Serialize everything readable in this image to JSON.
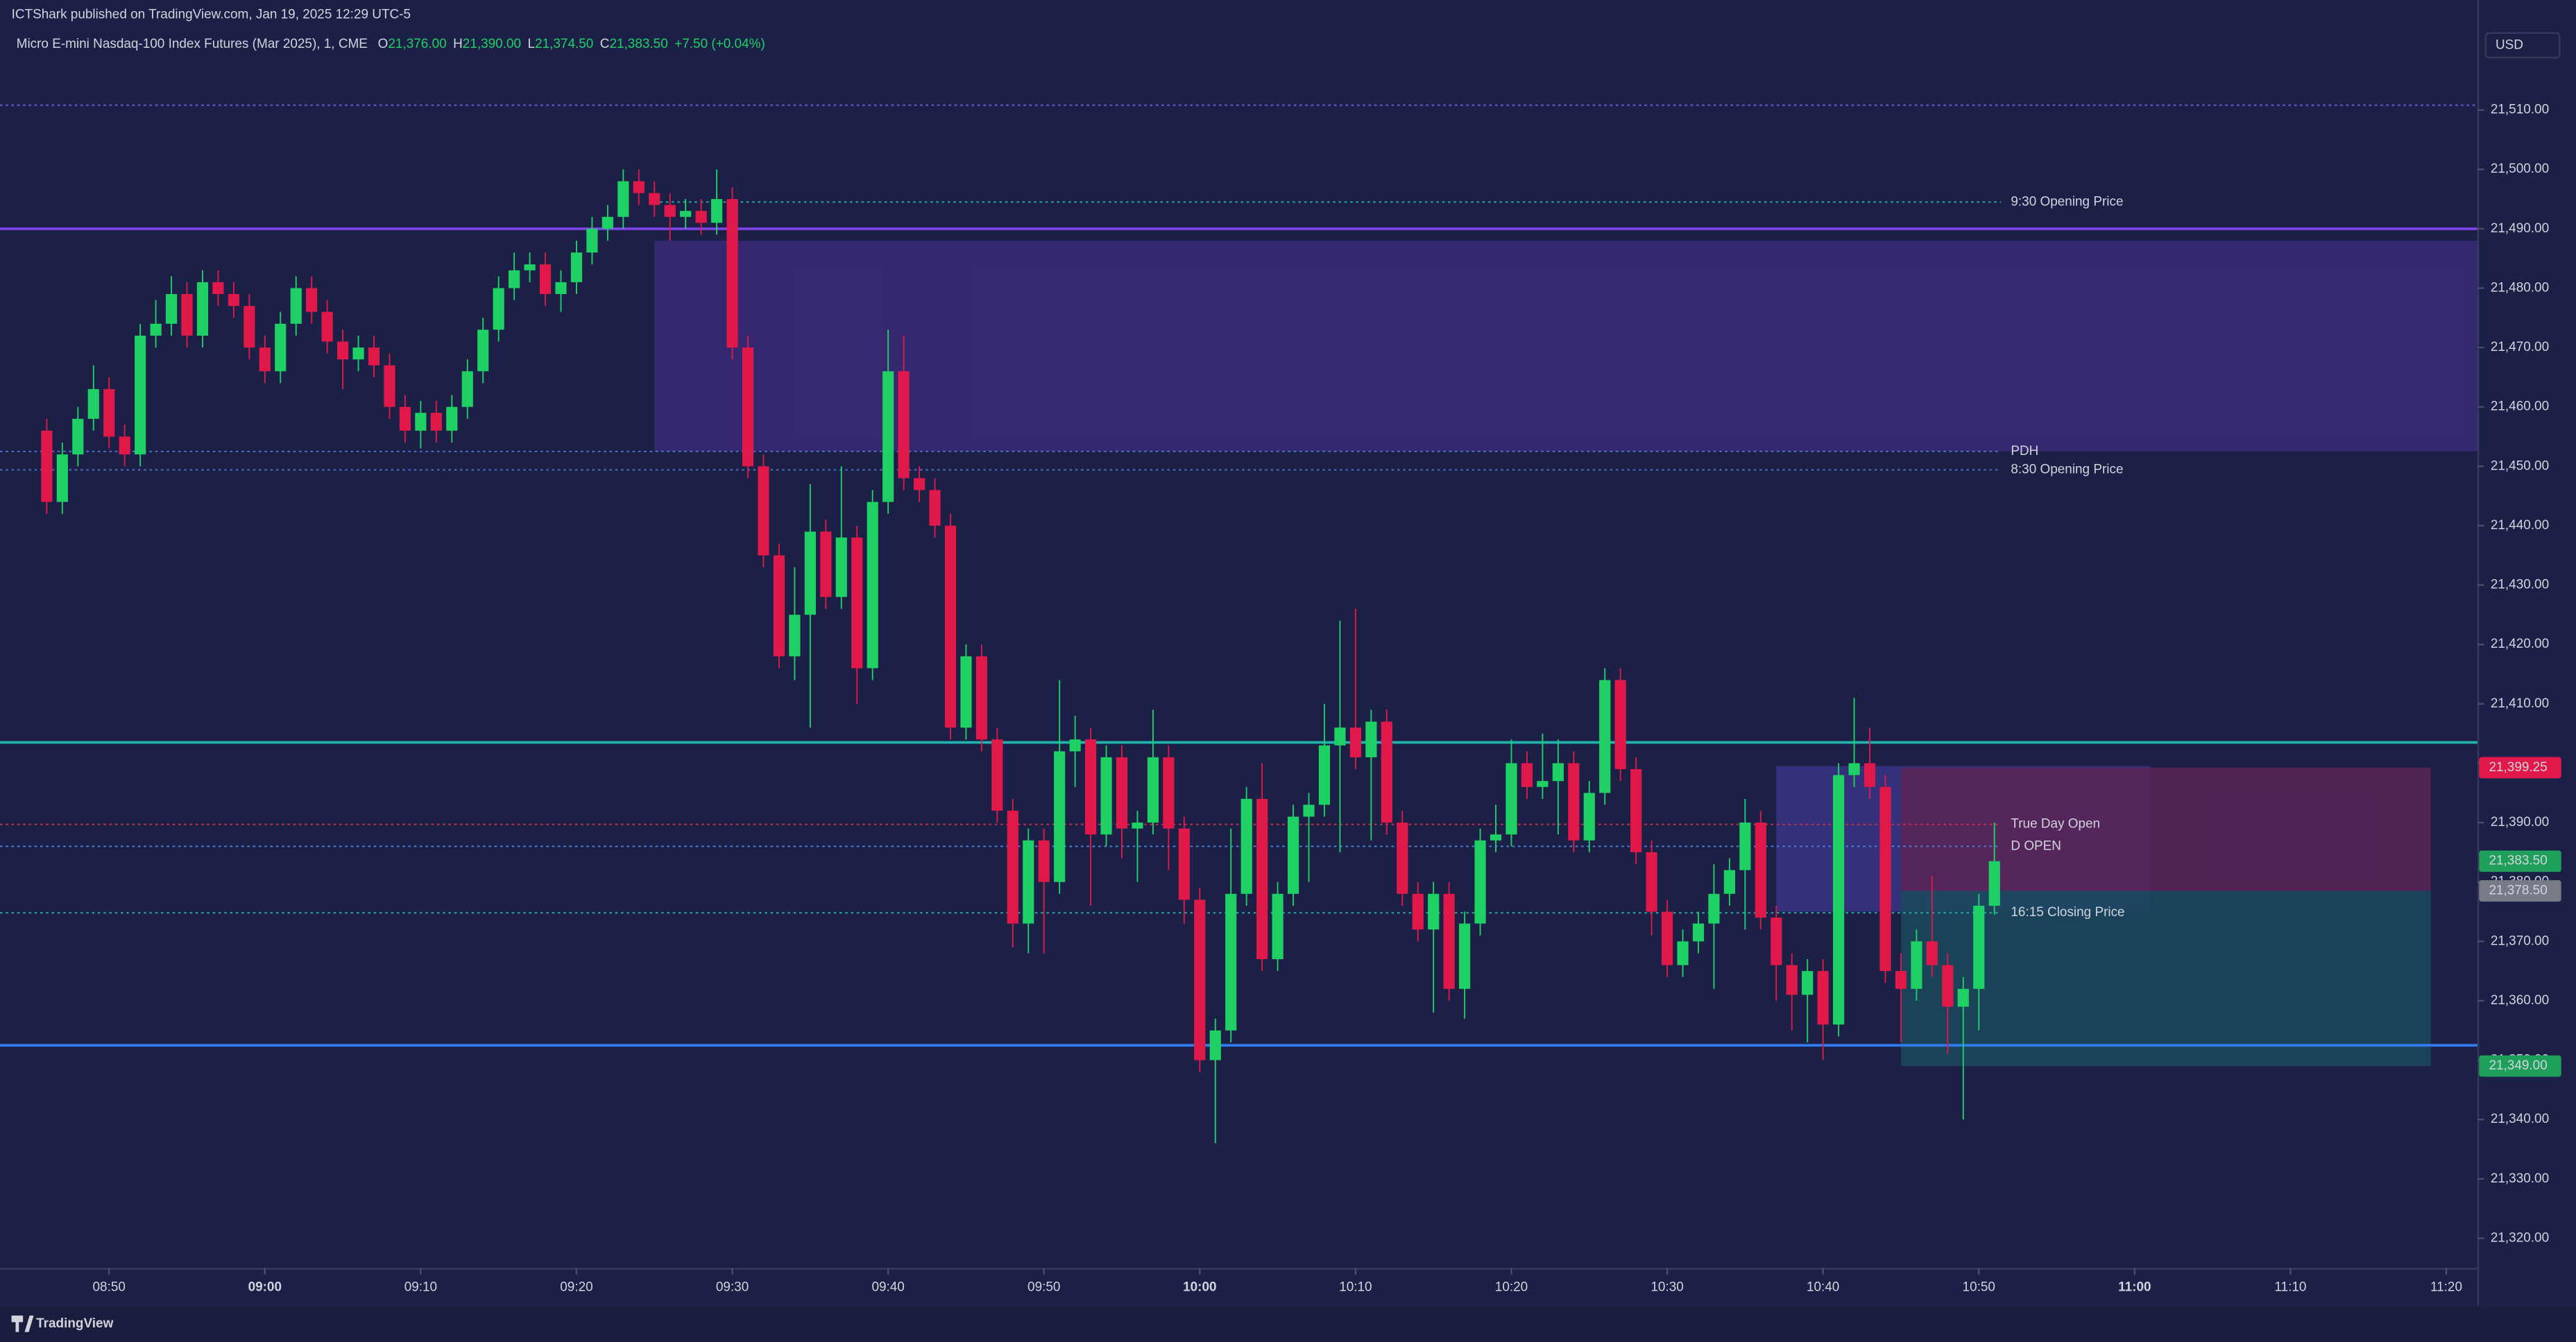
{
  "header": {
    "publisher": "ICTShark published on TradingView.com, Jan 19, 2025 12:29 UTC-5",
    "symbol": "Micro E-mini Nasdaq-100 Index Futures (Mar 2025), 1, CME",
    "ohlc": [
      {
        "key": "O",
        "text": "21,376.00"
      },
      {
        "key": "H",
        "text": "21,390.00"
      },
      {
        "key": "L",
        "text": "21,374.50"
      },
      {
        "key": "C",
        "text": "21,383.50"
      }
    ],
    "change": "+7.50 (+0.04%)",
    "currency": "USD",
    "brand": "TradingView"
  },
  "chart_data": {
    "type": "candlestick",
    "up_color": "#1fd164",
    "down_color": "#e0194a",
    "x": [
      "08:46",
      "08:47",
      "08:48",
      "08:49",
      "08:50",
      "08:51",
      "08:52",
      "08:53",
      "08:54",
      "08:55",
      "08:56",
      "08:57",
      "08:58",
      "08:59",
      "09:00",
      "09:01",
      "09:02",
      "09:03",
      "09:04",
      "09:05",
      "09:06",
      "09:07",
      "09:08",
      "09:09",
      "09:10",
      "09:11",
      "09:12",
      "09:13",
      "09:14",
      "09:15",
      "09:16",
      "09:17",
      "09:18",
      "09:19",
      "09:20",
      "09:21",
      "09:22",
      "09:23",
      "09:24",
      "09:25",
      "09:26",
      "09:27",
      "09:28",
      "09:29",
      "09:30",
      "09:31",
      "09:32",
      "09:33",
      "09:34",
      "09:35",
      "09:36",
      "09:37",
      "09:38",
      "09:39",
      "09:40",
      "09:41",
      "09:42",
      "09:43",
      "09:44",
      "09:45",
      "09:46",
      "09:47",
      "09:48",
      "09:49",
      "09:50",
      "09:51",
      "09:52",
      "09:53",
      "09:54",
      "09:55",
      "09:56",
      "09:57",
      "09:58",
      "09:59",
      "10:00",
      "10:01",
      "10:02",
      "10:03",
      "10:04",
      "10:05",
      "10:06",
      "10:07",
      "10:08",
      "10:09",
      "10:10",
      "10:11",
      "10:12",
      "10:13",
      "10:14",
      "10:15",
      "10:16",
      "10:17",
      "10:18",
      "10:19",
      "10:20",
      "10:21",
      "10:22",
      "10:23",
      "10:24",
      "10:25",
      "10:26",
      "10:27",
      "10:28",
      "10:29",
      "10:30",
      "10:31",
      "10:32",
      "10:33",
      "10:34",
      "10:35",
      "10:36",
      "10:37",
      "10:38",
      "10:39",
      "10:40",
      "10:41",
      "10:42",
      "10:43",
      "10:44",
      "10:45",
      "10:46",
      "10:47",
      "10:48",
      "10:49",
      "10:50",
      "10:51"
    ],
    "open": [
      21456,
      21444,
      21452,
      21458,
      21463,
      21455,
      21452,
      21472,
      21474,
      21479,
      21472,
      21481,
      21479,
      21477,
      21470,
      21466,
      21474,
      21480,
      21476,
      21471,
      21468,
      21470,
      21467,
      21460,
      21456,
      21459,
      21456,
      21460,
      21466,
      21473,
      21480,
      21483,
      21484,
      21479,
      21481,
      21486,
      21490,
      21492,
      21498,
      21496,
      21494,
      21492,
      21493,
      21491,
      21495,
      21470,
      21450,
      21435,
      21418,
      21425,
      21439,
      21428,
      21438,
      21416,
      21444,
      21466,
      21448,
      21446,
      21440,
      21406,
      21418,
      21404,
      21392,
      21373,
      21387,
      21380,
      21402,
      21404,
      21388,
      21401,
      21389,
      21390,
      21401,
      21389,
      21377,
      21350,
      21355,
      21378,
      21394,
      21367,
      21378,
      21391,
      21393,
      21403,
      21406,
      21401,
      21407,
      21390,
      21378,
      21372,
      21378,
      21362,
      21373,
      21387,
      21388,
      21400,
      21396,
      21397,
      21400,
      21387,
      21395,
      21414,
      21399,
      21385,
      21375,
      21366,
      21370,
      21373,
      21378,
      21382,
      21390,
      21374,
      21366,
      21361,
      21365,
      21356,
      21398,
      21400,
      21396,
      21365,
      21362,
      21370,
      21366,
      21359,
      21362,
      21376
    ],
    "high": [
      21458,
      21454,
      21460,
      21467,
      21465,
      21457,
      21474,
      21478,
      21482,
      21481,
      21483,
      21483,
      21481,
      21479,
      21472,
      21476,
      21482,
      21482,
      21478,
      21473,
      21472,
      21472,
      21469,
      21462,
      21461,
      21461,
      21462,
      21468,
      21475,
      21482,
      21486,
      21486,
      21486,
      21483,
      21488,
      21492,
      21494,
      21500,
      21500,
      21498,
      21496,
      21495,
      21495,
      21500,
      21497,
      21472,
      21452,
      21437,
      21433,
      21447,
      21441,
      21450,
      21440,
      21446,
      21473,
      21472,
      21450,
      21448,
      21442,
      21420,
      21420,
      21406,
      21394,
      21389,
      21389,
      21414,
      21408,
      21406,
      21403,
      21403,
      21392,
      21409,
      21403,
      21391,
      21379,
      21357,
      21389,
      21396,
      21400,
      21380,
      21393,
      21395,
      21410,
      21424,
      21426,
      21409,
      21409,
      21392,
      21380,
      21380,
      21380,
      21375,
      21389,
      21393,
      21404,
      21402,
      21405,
      21404,
      21402,
      21397,
      21416,
      21416,
      21401,
      21387,
      21377,
      21372,
      21375,
      21383,
      21384,
      21394,
      21392,
      21376,
      21368,
      21367,
      21367,
      21400,
      21411,
      21406,
      21398,
      21368,
      21372,
      21381,
      21368,
      21364,
      21378,
      21390
    ],
    "low": [
      21442,
      21442,
      21450,
      21456,
      21453,
      21450,
      21450,
      21470,
      21472,
      21470,
      21470,
      21477,
      21475,
      21468,
      21464,
      21464,
      21472,
      21474,
      21469,
      21463,
      21466,
      21465,
      21458,
      21454,
      21453,
      21454,
      21454,
      21458,
      21464,
      21471,
      21478,
      21481,
      21477,
      21476,
      21479,
      21484,
      21488,
      21490,
      21494,
      21492,
      21488,
      21490,
      21489,
      21489,
      21468,
      21448,
      21433,
      21416,
      21414,
      21406,
      21426,
      21426,
      21410,
      21414,
      21442,
      21446,
      21444,
      21438,
      21404,
      21404,
      21402,
      21390,
      21369,
      21368,
      21368,
      21378,
      21396,
      21376,
      21386,
      21384,
      21380,
      21388,
      21382,
      21373,
      21348,
      21336,
      21353,
      21376,
      21365,
      21365,
      21376,
      21380,
      21391,
      21385,
      21399,
      21387,
      21388,
      21376,
      21370,
      21358,
      21360,
      21357,
      21371,
      21385,
      21386,
      21394,
      21394,
      21388,
      21385,
      21385,
      21393,
      21397,
      21383,
      21371,
      21364,
      21364,
      21368,
      21362,
      21376,
      21372,
      21372,
      21360,
      21355,
      21353,
      21350,
      21354,
      21396,
      21394,
      21363,
      21353,
      21360,
      21364,
      21351,
      21340,
      21355,
      21374.5
    ],
    "close": [
      21444,
      21452,
      21458,
      21463,
      21455,
      21452,
      21472,
      21474,
      21479,
      21472,
      21481,
      21479,
      21477,
      21470,
      21466,
      21474,
      21480,
      21476,
      21471,
      21468,
      21470,
      21467,
      21460,
      21456,
      21459,
      21456,
      21460,
      21466,
      21473,
      21480,
      21483,
      21484,
      21479,
      21481,
      21486,
      21490,
      21492,
      21498,
      21496,
      21494,
      21492,
      21493,
      21491,
      21495,
      21470,
      21450,
      21435,
      21418,
      21425,
      21439,
      21428,
      21438,
      21416,
      21444,
      21466,
      21448,
      21446,
      21440,
      21406,
      21418,
      21404,
      21392,
      21373,
      21387,
      21380,
      21402,
      21404,
      21388,
      21401,
      21389,
      21390,
      21401,
      21389,
      21377,
      21350,
      21355,
      21378,
      21394,
      21367,
      21378,
      21391,
      21393,
      21403,
      21406,
      21401,
      21407,
      21390,
      21378,
      21372,
      21378,
      21362,
      21373,
      21387,
      21388,
      21400,
      21396,
      21397,
      21400,
      21387,
      21395,
      21414,
      21399,
      21385,
      21375,
      21366,
      21370,
      21373,
      21378,
      21382,
      21390,
      21374,
      21366,
      21361,
      21365,
      21356,
      21398,
      21400,
      21396,
      21365,
      21362,
      21370,
      21366,
      21359,
      21362,
      21376,
      21383.5
    ],
    "xlim": [
      "08:43",
      "11:22"
    ],
    "xticks": [
      "08:50",
      "09:00",
      "09:10",
      "09:20",
      "09:30",
      "09:40",
      "09:50",
      "10:00",
      "10:10",
      "10:20",
      "10:30",
      "10:40",
      "10:50",
      "11:00",
      "11:10",
      "11:20"
    ],
    "ylim": [
      21315,
      21528.5
    ],
    "yticks": [
      {
        "value": 21320,
        "label": "21,320.00"
      },
      {
        "value": 21330,
        "label": "21,330.00"
      },
      {
        "value": 21340,
        "label": "21,340.00"
      },
      {
        "value": 21350,
        "label": "21,350.00"
      },
      {
        "value": 21360,
        "label": "21,360.00"
      },
      {
        "value": 21370,
        "label": "21,370.00"
      },
      {
        "value": 21380,
        "label": "21,380.00"
      },
      {
        "value": 21390,
        "label": "21,390.00"
      },
      {
        "value": 21400,
        "label": "21,400.00"
      },
      {
        "value": 21410,
        "label": "21,410.00"
      },
      {
        "value": 21420,
        "label": "21,420.00"
      },
      {
        "value": 21430,
        "label": "21,430.00"
      },
      {
        "value": 21440,
        "label": "21,440.00"
      },
      {
        "value": 21450,
        "label": "21,450.00"
      },
      {
        "value": 21460,
        "label": "21,460.00"
      },
      {
        "value": 21470,
        "label": "21,470.00"
      },
      {
        "value": 21480,
        "label": "21,480.00"
      },
      {
        "value": 21490,
        "label": "21,490.00"
      },
      {
        "value": 21500,
        "label": "21,500.00"
      },
      {
        "value": 21510,
        "label": "21,510.00"
      }
    ],
    "zones": [
      {
        "x": [
          "09:25",
          "11:22"
        ],
        "y": [
          21452.5,
          21488
        ],
        "color": "#3a2a78"
      },
      {
        "x": [
          "10:37",
          "11:01"
        ],
        "y": [
          21375,
          21399.5
        ],
        "color": "#3a3485"
      },
      {
        "x": [
          "10:45",
          "11:19"
        ],
        "y": [
          21378.5,
          21399.25
        ],
        "color": "#5a2456"
      },
      {
        "x": [
          "10:45",
          "11:19"
        ],
        "y": [
          21349,
          21378.5
        ],
        "color": "#1a4a5e"
      }
    ],
    "levels": [
      {
        "value": 21510.8,
        "color": "#5a5fd0",
        "style": "dotted"
      },
      {
        "value": 21494.5,
        "color": "#26a69a",
        "style": "dotted",
        "label": "9:30 Opening Price",
        "from": "09:25"
      },
      {
        "value": 21490,
        "color": "#7c44e6",
        "style": "solid"
      },
      {
        "value": 21452.5,
        "color": "#4a6fc0",
        "style": "dotted",
        "label": "PDH"
      },
      {
        "value": 21449.4,
        "color": "#4a6fc0",
        "style": "dotted",
        "label": "8:30 Opening Price"
      },
      {
        "value": 21403.5,
        "color": "#21b5b0",
        "style": "solid"
      },
      {
        "value": 21389.7,
        "color": "#c0304a",
        "style": "dotted",
        "label": "True Day Open"
      },
      {
        "value": 21386,
        "color": "#4a7ad0",
        "style": "dotted",
        "label": "D OPEN"
      },
      {
        "value": 21374.8,
        "color": "#26a69a",
        "style": "dotted",
        "label": "16:15 Closing Price"
      },
      {
        "value": 21352.5,
        "color": "#2f7bef",
        "style": "solid"
      }
    ],
    "price_labels": [
      {
        "value": 21399.25,
        "label": "21,399.25",
        "color": "#e0194a"
      },
      {
        "value": 21383.5,
        "label": "21,383.50",
        "color": "#1fa05a"
      },
      {
        "value": 21378.5,
        "label": "21,378.50",
        "color": "#787b86"
      },
      {
        "value": 21349,
        "label": "21,349.00",
        "color": "#1fa05a"
      }
    ]
  }
}
